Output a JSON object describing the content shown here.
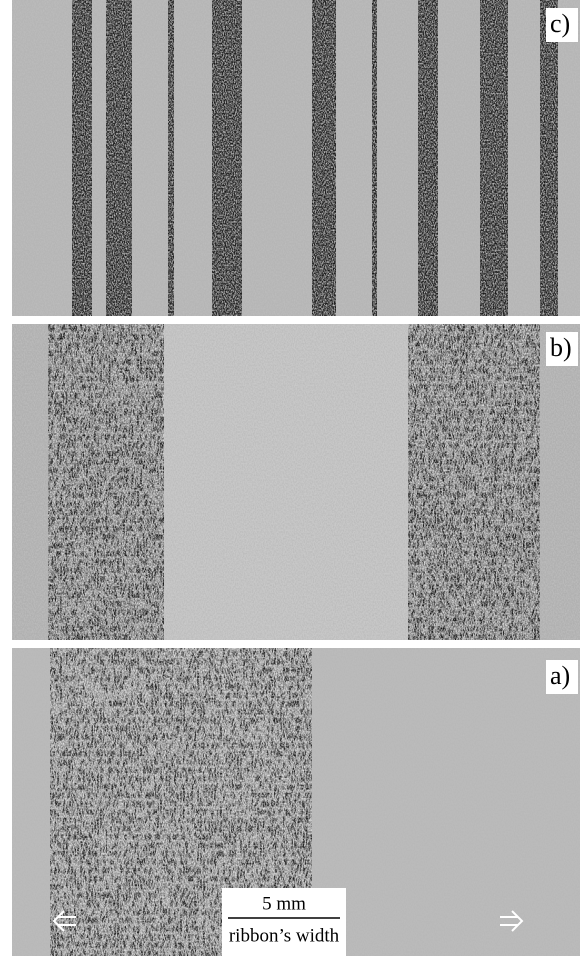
{
  "panels": [
    {
      "label": "c)"
    },
    {
      "label": "b)"
    },
    {
      "label": "a)"
    }
  ],
  "scale_bar": {
    "length": "5 mm",
    "caption": "ribbon’s width"
  }
}
